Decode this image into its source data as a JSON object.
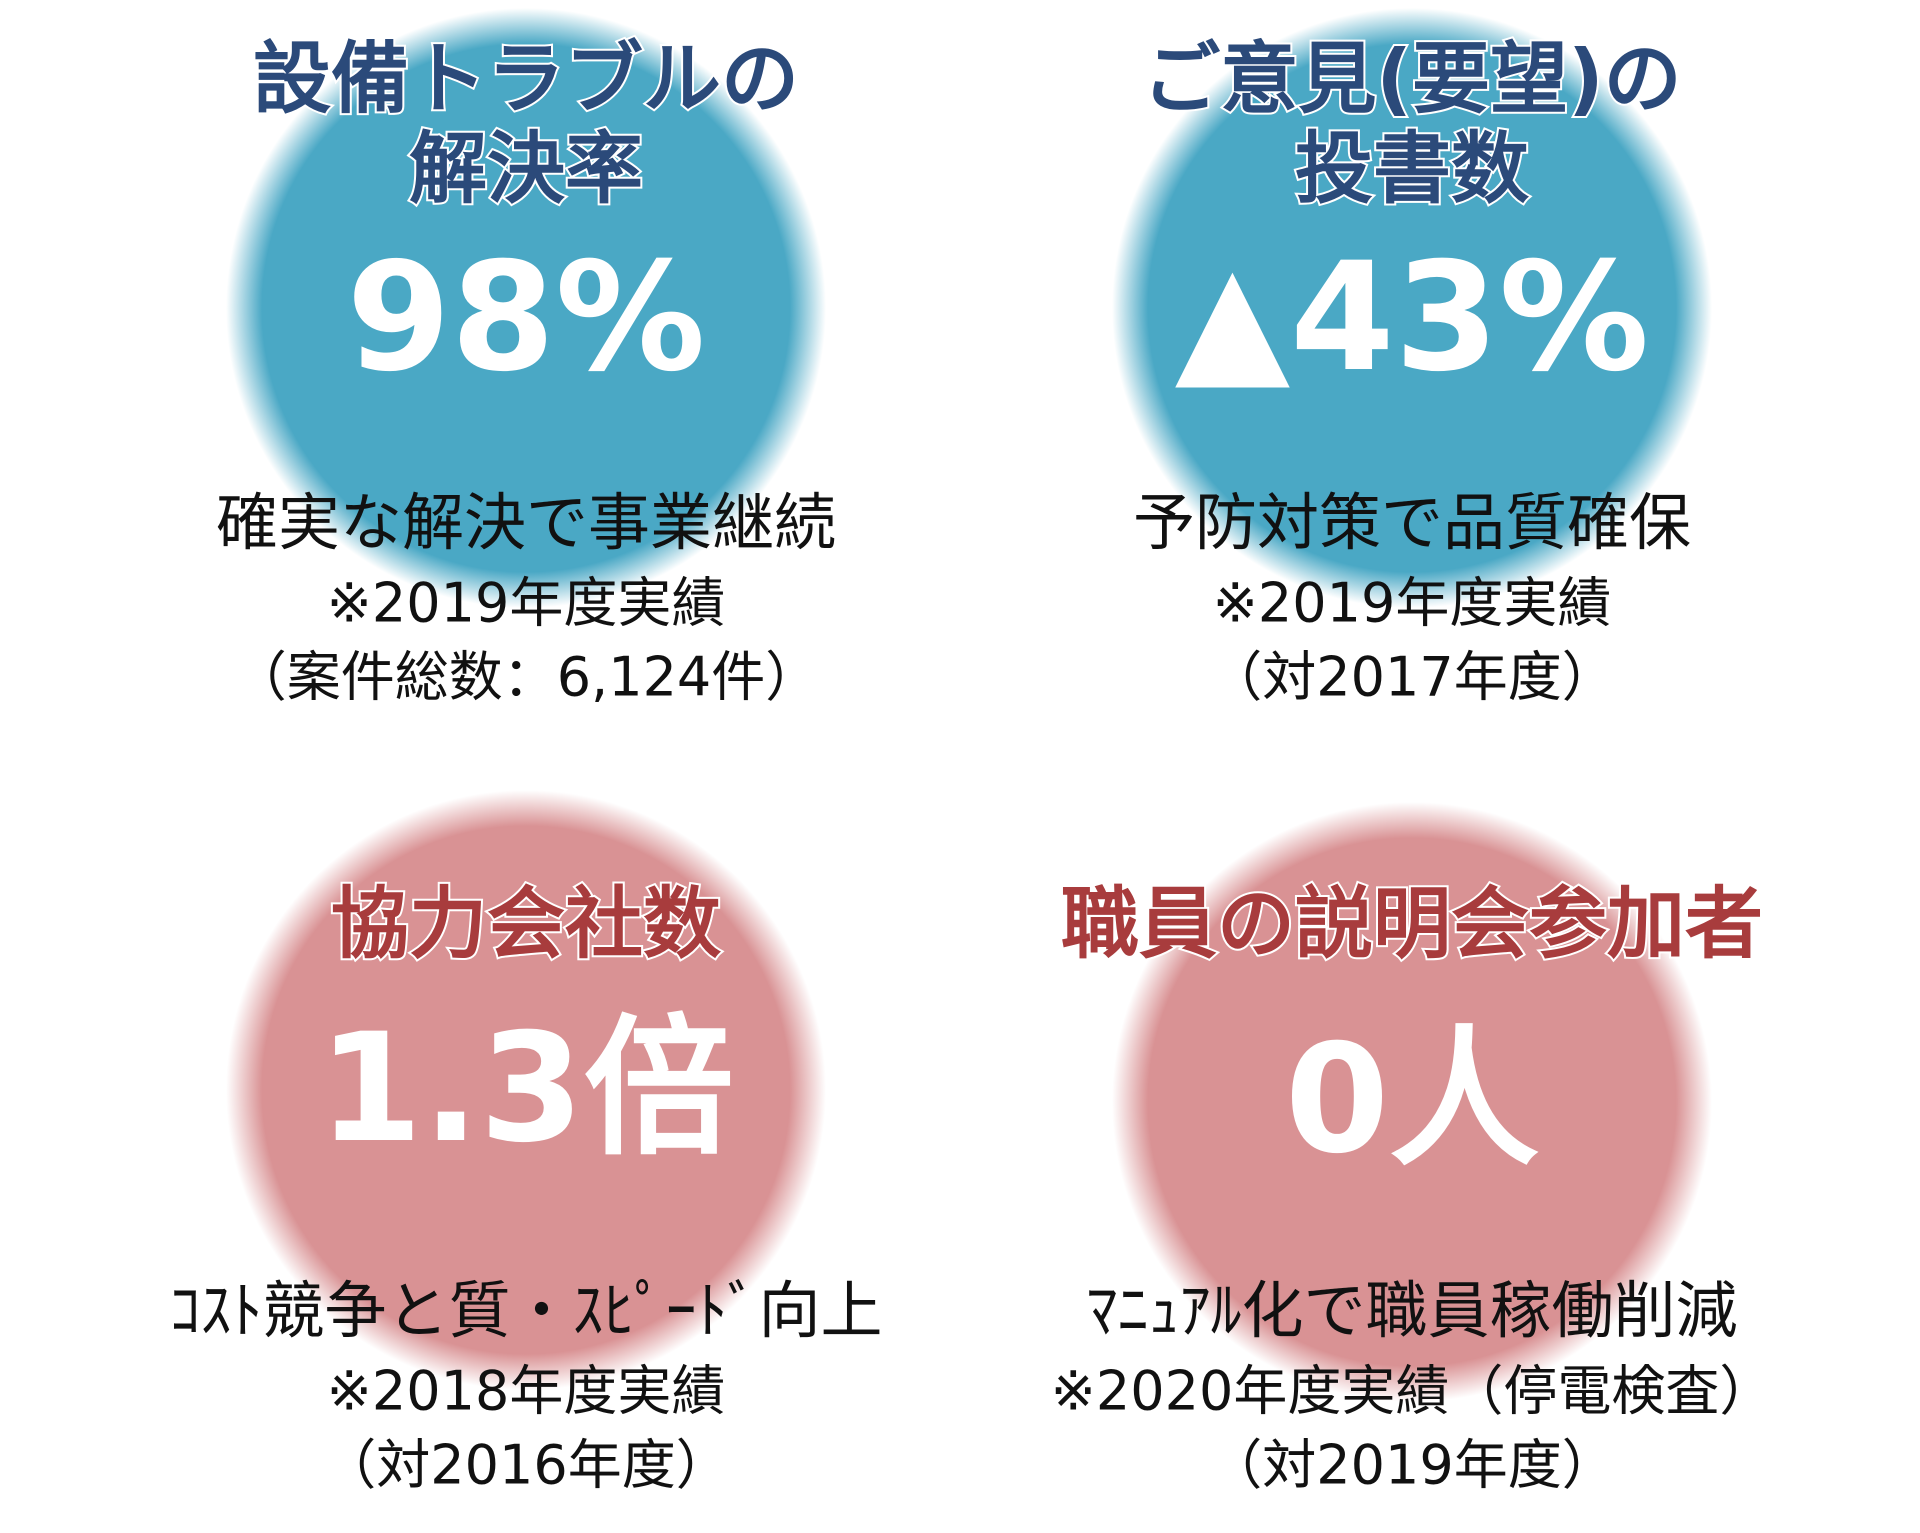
{
  "panels": [
    {
      "title_lines": [
        "設備トラブルの",
        "解決率"
      ],
      "value": "98%",
      "description": "確実な解決で事業継続",
      "notes": [
        "※2019年度実績",
        "（案件総数：6,124件）"
      ]
    },
    {
      "title_lines": [
        "ご意見(要望)の",
        "投書数"
      ],
      "value": "▲43%",
      "description": "予防対策で品質確保",
      "notes": [
        "※2019年度実績",
        "（対2017年度）"
      ]
    },
    {
      "title_lines": [
        "協力会社数"
      ],
      "value": "1.3倍",
      "description": "ｺｽﾄ競争と質・ｽﾋﾟｰﾄﾞ向上",
      "notes": [
        "※2018年度実績",
        "（対2016年度）"
      ]
    },
    {
      "title_lines": [
        "職員の説明会参加者"
      ],
      "value": "0人",
      "description": "ﾏﾆｭｱﾙ化で職員稼働削減",
      "notes": [
        "※2020年度実績（停電検査）",
        "（対2019年度）"
      ]
    }
  ]
}
